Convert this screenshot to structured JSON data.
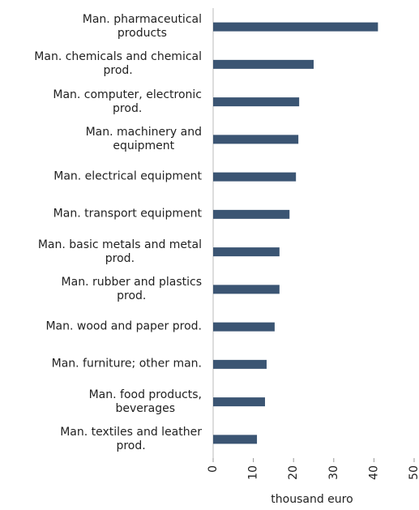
{
  "chart_data": {
    "type": "bar",
    "orientation": "horizontal",
    "x_label": "thousand euro",
    "categories": [
      "Man.  pharmaceutical\nproducts",
      "Man. chemicals and chemical\nprod.",
      "Man. computer, electronic\nprod.",
      "Man. machinery and\nequipment",
      "Man. electrical equipment",
      "Man. transport equipment",
      "Man. basic metals and metal\nprod.",
      "Man. rubber and plastics\nprod.",
      "Man. wood and paper prod.",
      "Man. furniture; other man.",
      "Man. food products,\nbeverages",
      "Man. textiles and leather\nprod."
    ],
    "values": [
      41,
      25,
      21.4,
      21.2,
      20.6,
      19,
      16.5,
      16.5,
      15.3,
      13.3,
      12.9,
      10.9
    ],
    "color": "#3b5573",
    "xlim": [
      0,
      50
    ],
    "xticks": [
      0,
      10,
      20,
      30,
      40,
      50
    ]
  }
}
